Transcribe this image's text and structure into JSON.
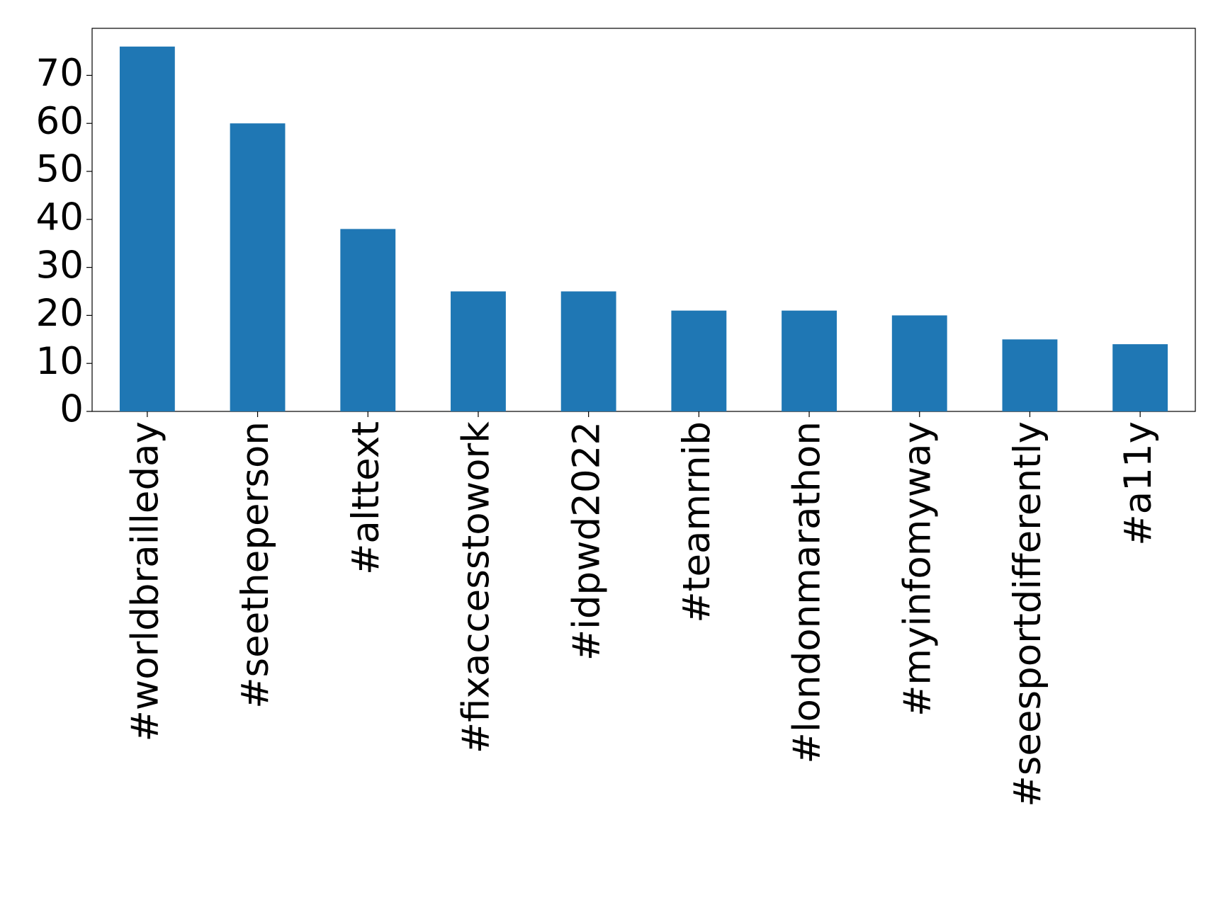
{
  "chart_data": {
    "type": "bar",
    "categories": [
      "#worldbrailleday",
      "#seetheperson",
      "#alttext",
      "#fixaccesstowork",
      "#idpwd2022",
      "#teamrnib",
      "#londonmarathon",
      "#myinfomyway",
      "#seesportdifferently",
      "#a11y"
    ],
    "values": [
      76,
      60,
      38,
      25,
      25,
      21,
      21,
      20,
      15,
      14
    ],
    "color": "#1f77b4",
    "ylim": [
      0,
      79.8
    ],
    "yticks": [
      0,
      10,
      20,
      30,
      40,
      50,
      60,
      70
    ],
    "grid": false
  }
}
